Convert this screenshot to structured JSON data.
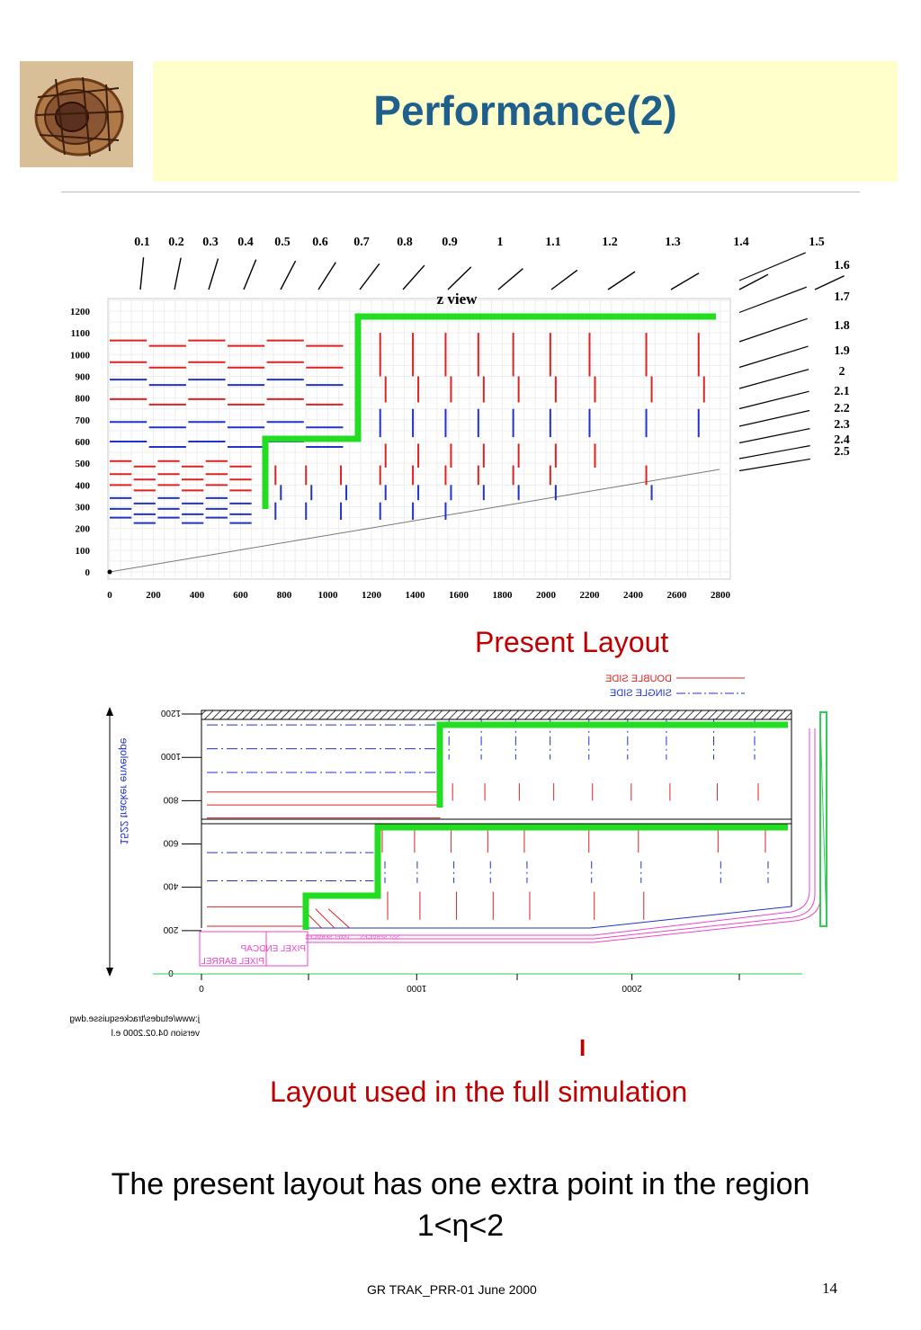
{
  "slide": {
    "title": "Performance(2)",
    "caption_present": "Present Layout",
    "caption_full": "Layout used in the full simulation",
    "marker": "I",
    "body_line1": "The present  layout has one extra point in the region",
    "body_line2": "1<η<2",
    "footer": "GR TRAK_PRR-01  June 2000",
    "page_number": "14"
  },
  "top_plot": {
    "plot_title": "z view",
    "eta_labels": [
      "0.1",
      "0.2",
      "0.3",
      "0.4",
      "0.5",
      "0.6",
      "0.7",
      "0.8",
      "0.9",
      "1",
      "1.1",
      "1.2",
      "1.3",
      "1.4",
      "1.5",
      "1.6",
      "1.7",
      "1.8",
      "1.9",
      "2",
      "2.1",
      "2.2",
      "2.3",
      "2.4",
      "2.5"
    ],
    "y_ticks": [
      "1200",
      "1100",
      "1000",
      "900",
      "800",
      "700",
      "600",
      "500",
      "400",
      "300",
      "200",
      "100",
      "0"
    ],
    "x_ticks": [
      "0",
      "200",
      "400",
      "600",
      "800",
      "1000",
      "1200",
      "1400",
      "1600",
      "1800",
      "2000",
      "2200",
      "2400",
      "2600",
      "2800"
    ]
  },
  "bottom_plot": {
    "legend_double": "DOUBLE SIDE",
    "legend_single": "SINGLE SIDE",
    "y_ticks": [
      "1200",
      "1000",
      "800",
      "600",
      "400",
      "200",
      "0"
    ],
    "x_ticks": [
      "0",
      "1000",
      "2000"
    ],
    "vertical_label": "1522 tracker envelope",
    "pixel_barrel": "PIXEL BARREL",
    "pixel_endcap": "PIXEL ENDCAP",
    "cable_label1": "PIXEL SERVICES",
    "cable_label2": "SST SERVICES",
    "note_line1": "j:www/etudes/trackesquisse.dwg",
    "note_line2": "version  04.02.2000  e.l"
  },
  "colors": {
    "title": "#1f5f8b",
    "caption": "#c00000",
    "highlight": "#22dd22",
    "red": "#dd2222",
    "blue": "#2233cc",
    "magenta": "#ee44cc"
  }
}
